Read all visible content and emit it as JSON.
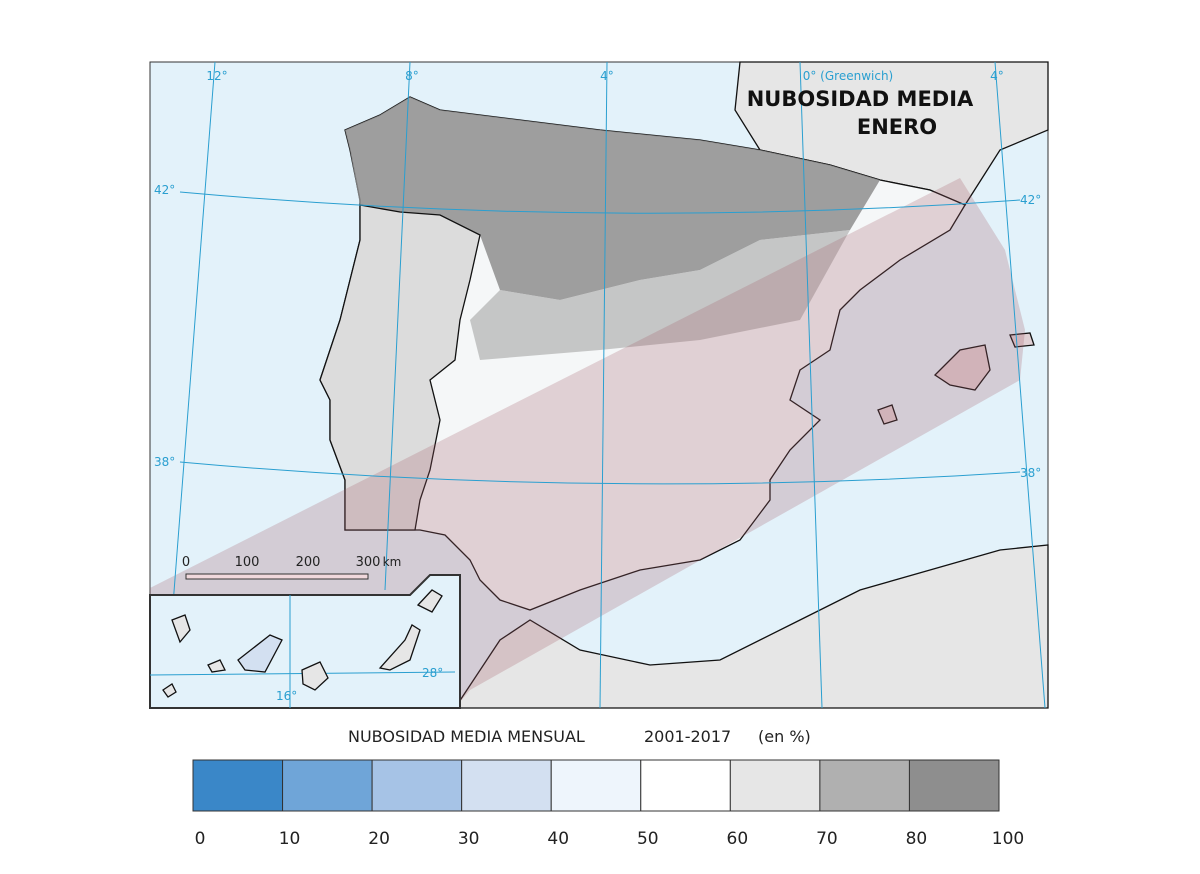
{
  "map": {
    "title": [
      "NUBOSIDAD MEDIA",
      "ENERO"
    ],
    "graticule_labels": [
      "12°",
      "8°",
      "4°",
      "0° (Greenwich)",
      "4°",
      "42°",
      "42°",
      "38°",
      "38°",
      "28°",
      "16°"
    ],
    "scale_bar": {
      "labels": [
        "0",
        "100",
        "200",
        "300",
        "km"
      ]
    }
  },
  "legend": {
    "title": "NUBOSIDAD MEDIA MENSUAL",
    "period": "2001-2017",
    "unit": "(en %)",
    "colors": [
      "#3a87c8",
      "#6fa5d8",
      "#a6c3e6",
      "#d3e0f1",
      "#eef5fc",
      "#ffffff",
      "#e6e6e6",
      "#b0b0b0",
      "#8e8e8e"
    ],
    "ticks": [
      0,
      10,
      20,
      30,
      40,
      50,
      60,
      70,
      80,
      100
    ]
  }
}
